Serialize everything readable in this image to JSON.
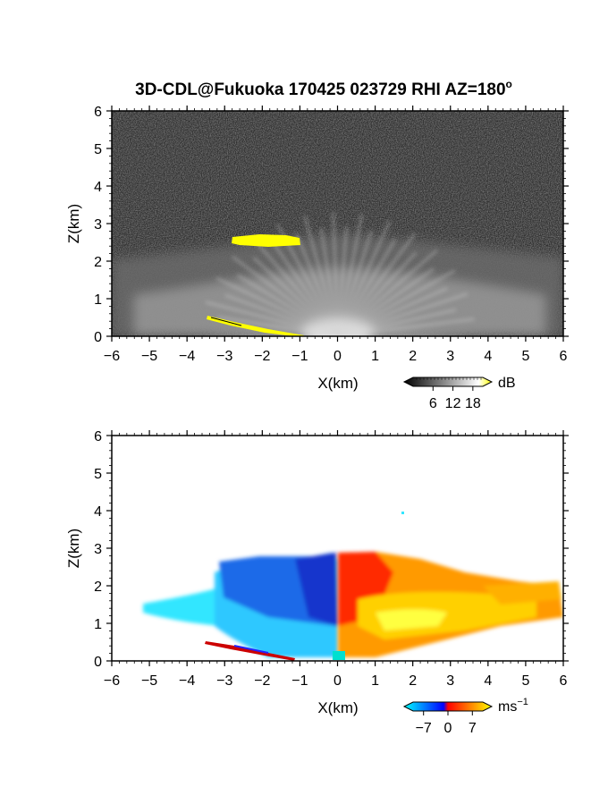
{
  "title": "3D-CDL@Fukuoka 170425 023729 RHI AZ=180",
  "title_superscript": "o",
  "chart_data": [
    {
      "type": "heatmap",
      "field": "reflectivity",
      "xlabel": "X(km)",
      "ylabel": "Z(km)",
      "xlim": [
        -6,
        6
      ],
      "ylim": [
        0,
        6
      ],
      "xticks": [
        -6,
        -5,
        -4,
        -3,
        -2,
        -1,
        0,
        1,
        2,
        3,
        4,
        5,
        6
      ],
      "yticks": [
        0,
        1,
        2,
        3,
        4,
        5,
        6
      ],
      "colorbar": {
        "unit": "dB",
        "ticks": [
          6,
          12,
          18
        ],
        "colors": [
          "#000000",
          "#ffffff",
          "#ffff00"
        ]
      },
      "features": [
        {
          "kind": "strong echo band",
          "x": [
            -2.8,
            -1.0
          ],
          "z": [
            2.4,
            2.7
          ],
          "color": "#ffff00"
        },
        {
          "kind": "low echo line",
          "x": [
            -3.4,
            -0.8
          ],
          "z": [
            0.0,
            0.5
          ],
          "color": "#ffff00"
        }
      ]
    },
    {
      "type": "heatmap",
      "field": "radial velocity",
      "xlabel": "X(km)",
      "ylabel": "Z(km)",
      "xlim": [
        -6,
        6
      ],
      "ylim": [
        0,
        6
      ],
      "xticks": [
        -6,
        -5,
        -4,
        -3,
        -2,
        -1,
        0,
        1,
        2,
        3,
        4,
        5,
        6
      ],
      "yticks": [
        0,
        1,
        2,
        3,
        4,
        5,
        6
      ],
      "colorbar": {
        "unit": "ms",
        "unit_superscript": "−1",
        "ticks": [
          -7,
          0,
          7
        ],
        "tick_labels": [
          "−7",
          "0",
          "7"
        ],
        "colors": [
          "#00ffff",
          "#0000ff",
          "#ff0000",
          "#ffff00"
        ]
      },
      "extent": {
        "x": [
          -5.6,
          6.0
        ],
        "z": [
          0.0,
          2.9
        ]
      },
      "negative_region": {
        "x": [
          -5.6,
          0.0
        ],
        "z": [
          0.0,
          2.6
        ]
      },
      "positive_region": {
        "x": [
          0.0,
          6.0
        ],
        "z": [
          0.0,
          2.9
        ]
      }
    }
  ]
}
